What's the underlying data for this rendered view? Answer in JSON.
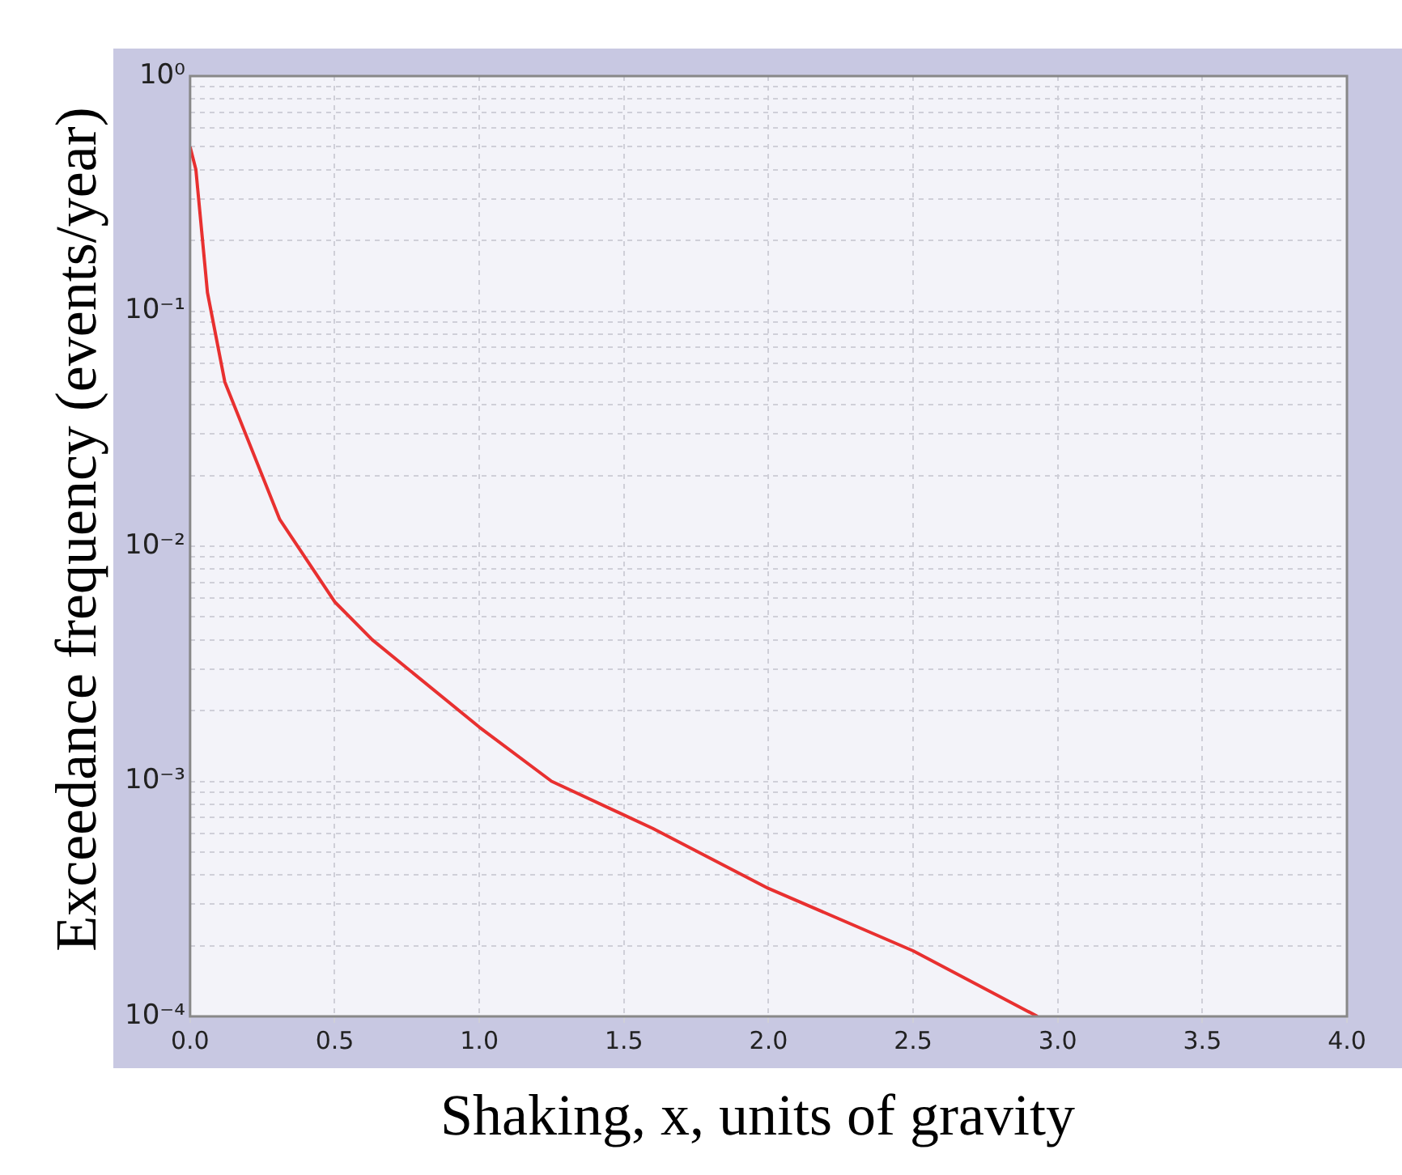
{
  "chart_data": {
    "type": "line",
    "xlabel": "Shaking, x, units of gravity",
    "ylabel": "Exceedance frequency (events/year)",
    "x": [
      0,
      0.02,
      0.06,
      0.12,
      0.31,
      0.5,
      0.63,
      1.0,
      1.25,
      1.6,
      2.0,
      2.5,
      2.93
    ],
    "series": [
      {
        "color": "#e83030",
        "values": [
          0.5,
          0.4,
          0.12,
          0.05,
          0.013,
          0.0058,
          0.004,
          0.0017,
          0.001,
          0.00063,
          0.00035,
          0.00019,
          0.0001
        ]
      }
    ],
    "log": "y",
    "xlim": [
      0,
      4
    ],
    "xticks": [
      {
        "value": 0,
        "label": "0.0"
      },
      {
        "value": 0.5,
        "label": "0.5"
      },
      {
        "value": 1,
        "label": "1.0"
      },
      {
        "value": 1.5,
        "label": "1.5"
      },
      {
        "value": 2,
        "label": "2.0"
      },
      {
        "value": 2.5,
        "label": "2.5"
      },
      {
        "value": 3,
        "label": "3.0"
      },
      {
        "value": 3.5,
        "label": "3.5"
      },
      {
        "value": 4,
        "label": "4.0"
      }
    ],
    "ylim": [
      0.0001,
      1
    ],
    "yticks": [
      {
        "value": 0.0001,
        "label": "10⁻⁴"
      },
      {
        "value": 0.0002,
        "label": null
      },
      {
        "value": 0.0003,
        "label": null
      },
      {
        "value": 0.0004,
        "label": null
      },
      {
        "value": 0.0005,
        "label": null
      },
      {
        "value": 0.0006,
        "label": null
      },
      {
        "value": 0.0007,
        "label": null
      },
      {
        "value": 0.0008,
        "label": null
      },
      {
        "value": 0.0009,
        "label": null
      },
      {
        "value": 0.001,
        "label": "10⁻³"
      },
      {
        "value": 0.002,
        "label": null
      },
      {
        "value": 0.003,
        "label": null
      },
      {
        "value": 0.004,
        "label": null
      },
      {
        "value": 0.005,
        "label": null
      },
      {
        "value": 0.006,
        "label": null
      },
      {
        "value": 0.007,
        "label": null
      },
      {
        "value": 0.008,
        "label": null
      },
      {
        "value": 0.009,
        "label": null
      },
      {
        "value": 0.01,
        "label": "10⁻²"
      },
      {
        "value": 0.02,
        "label": null
      },
      {
        "value": 0.03,
        "label": null
      },
      {
        "value": 0.04,
        "label": null
      },
      {
        "value": 0.05,
        "label": null
      },
      {
        "value": 0.06,
        "label": null
      },
      {
        "value": 0.07,
        "label": null
      },
      {
        "value": 0.08,
        "label": null
      },
      {
        "value": 0.09,
        "label": null
      },
      {
        "value": 0.1,
        "label": "10⁻¹"
      },
      {
        "value": 0.2,
        "label": null
      },
      {
        "value": 0.3,
        "label": null
      },
      {
        "value": 0.4,
        "label": null
      },
      {
        "value": 0.5,
        "label": null
      },
      {
        "value": 0.6,
        "label": null
      },
      {
        "value": 0.7,
        "label": null
      },
      {
        "value": 0.8,
        "label": null
      },
      {
        "value": 0.9,
        "label": null
      },
      {
        "value": 1,
        "label": "10⁰"
      }
    ],
    "grid": true,
    "marker": "none",
    "line_style": "solid",
    "legend": false
  }
}
